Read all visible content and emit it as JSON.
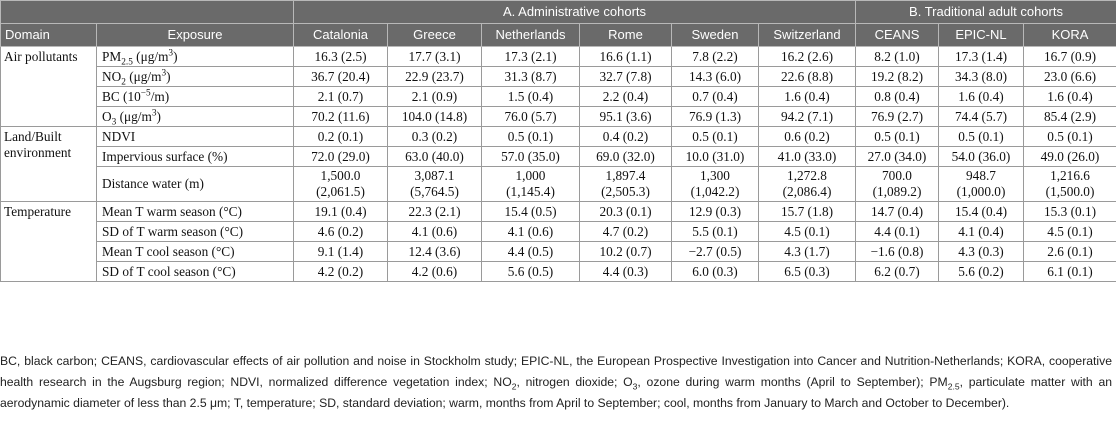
{
  "table": {
    "group_headers": [
      "A. Administrative cohorts",
      "B. Traditional adult cohorts"
    ],
    "col_domain": "Domain",
    "col_exposure": "Exposure",
    "cohorts": [
      "Catalonia",
      "Greece",
      "Netherlands",
      "Rome",
      "Sweden",
      "Switzerland",
      "CEANS",
      "EPIC-NL",
      "KORA"
    ],
    "domains": {
      "air": "Air pollutants",
      "land": "Land/Built environment",
      "temp": "Temperature"
    },
    "rows": [
      {
        "values": [
          "16.3 (2.5)",
          "17.7 (3.1)",
          "17.3 (2.1)",
          "16.6 (1.1)",
          "7.8 (2.2)",
          "16.2 (2.6)",
          "8.2 (1.0)",
          "17.3 (1.4)",
          "16.7 (0.9)"
        ]
      },
      {
        "values": [
          "36.7 (20.4)",
          "22.9 (23.7)",
          "31.3 (8.7)",
          "32.7 (7.8)",
          "14.3 (6.0)",
          "22.6 (8.8)",
          "19.2 (8.2)",
          "34.3 (8.0)",
          "23.0 (6.6)"
        ]
      },
      {
        "values": [
          "2.1 (0.7)",
          "2.1 (0.9)",
          "1.5 (0.4)",
          "2.2 (0.4)",
          "0.7 (0.4)",
          "1.6 (0.4)",
          "0.8 (0.4)",
          "1.6 (0.4)",
          "1.6 (0.4)"
        ]
      },
      {
        "values": [
          "70.2 (11.6)",
          "104.0 (14.8)",
          "76.0 (5.7)",
          "95.1 (3.6)",
          "76.9 (1.3)",
          "94.2 (7.1)",
          "76.9 (2.7)",
          "74.4 (5.7)",
          "85.4 (2.9)"
        ]
      },
      {
        "exposure": "NDVI",
        "values": [
          "0.2 (0.1)",
          "0.3 (0.2)",
          "0.5 (0.1)",
          "0.4 (0.2)",
          "0.5 (0.1)",
          "0.6 (0.2)",
          "0.5 (0.1)",
          "0.5 (0.1)",
          "0.5 (0.1)"
        ]
      },
      {
        "exposure": "Impervious surface (%)",
        "values": [
          "72.0 (29.0)",
          "63.0 (40.0)",
          "57.0 (35.0)",
          "69.0 (32.0)",
          "10.0 (31.0)",
          "41.0 (33.0)",
          "27.0 (34.0)",
          "54.0 (36.0)",
          "49.0 (26.0)"
        ]
      },
      {
        "exposure": "Distance water (m)",
        "values_top": [
          "1,500.0",
          "3,087.1",
          "1,000",
          "1,897.4",
          "1,300",
          "1,272.8",
          "700.0",
          "948.7",
          "1,216.6"
        ],
        "values_bottom": [
          "(2,061.5)",
          "(5,764.5)",
          "(1,145.4)",
          "(2,505.3)",
          "(1,042.2)",
          "(2,086.4)",
          "(1,089.2)",
          "(1,000.0)",
          "(1,500.0)"
        ]
      },
      {
        "exposure": "Mean T warm season (°C)",
        "values": [
          "19.1 (0.4)",
          "22.3 (2.1)",
          "15.4 (0.5)",
          "20.3 (0.1)",
          "12.9 (0.3)",
          "15.7 (1.8)",
          "14.7 (0.4)",
          "15.4 (0.4)",
          "15.3 (0.1)"
        ]
      },
      {
        "exposure": "SD of T warm season (°C)",
        "values": [
          "4.6 (0.2)",
          "4.1 (0.6)",
          "4.1 (0.6)",
          "4.7 (0.2)",
          "5.5 (0.1)",
          "4.5 (0.1)",
          "4.4 (0.1)",
          "4.1 (0.4)",
          "4.5 (0.1)"
        ]
      },
      {
        "exposure": "Mean T cool season (°C)",
        "values": [
          "9.1 (1.4)",
          "12.4 (3.6)",
          "4.4 (0.5)",
          "10.2 (0.7)",
          "−2.7 (0.5)",
          "4.3 (1.7)",
          "−1.6 (0.8)",
          "4.3 (0.3)",
          "2.6 (0.1)"
        ]
      },
      {
        "exposure": "SD of T cool season (°C)",
        "values": [
          "4.2 (0.2)",
          "4.2 (0.6)",
          "5.6 (0.5)",
          "4.4 (0.3)",
          "6.0 (0.3)",
          "6.5 (0.3)",
          "6.2 (0.7)",
          "5.6 (0.2)",
          "6.1 (0.1)"
        ]
      }
    ],
    "exposure_labels": {
      "pm": {
        "a": "PM",
        "sub": "2.5",
        "b": " (μg/m",
        "sup": "3",
        "c": ")"
      },
      "no2": {
        "a": "NO",
        "sub": "2",
        "b": " (μg/m",
        "sup": "3",
        "c": ")"
      },
      "bc": {
        "a": "BC (10",
        "sup": "−5",
        "b": "/m)"
      },
      "o3": {
        "a": "O",
        "sub": "3",
        "b": " (μg/m",
        "sup": "3",
        "c": ")"
      }
    }
  },
  "caption": {
    "p1": "BC, black carbon; CEANS, cardiovascular effects of air pollution and noise in Stockholm study; EPIC-NL, the European Prospective Investigation into Cancer and Nutrition-Netherlands; KORA, cooperative health research in the Augsburg region; NDVI, normalized difference vegetation index; NO",
    "p1_sub": "2",
    "p2": ", nitrogen dioxide; O",
    "p2_sub": "3",
    "p3": ", ozone during warm months (April to September); PM",
    "p3_sub": "2.5",
    "p4": ", particulate matter with an aerodynamic diameter of less than 2.5 μm; T, temperature; SD, standard deviation; warm, months from April to September; cool, months from January to March and October to December)."
  }
}
